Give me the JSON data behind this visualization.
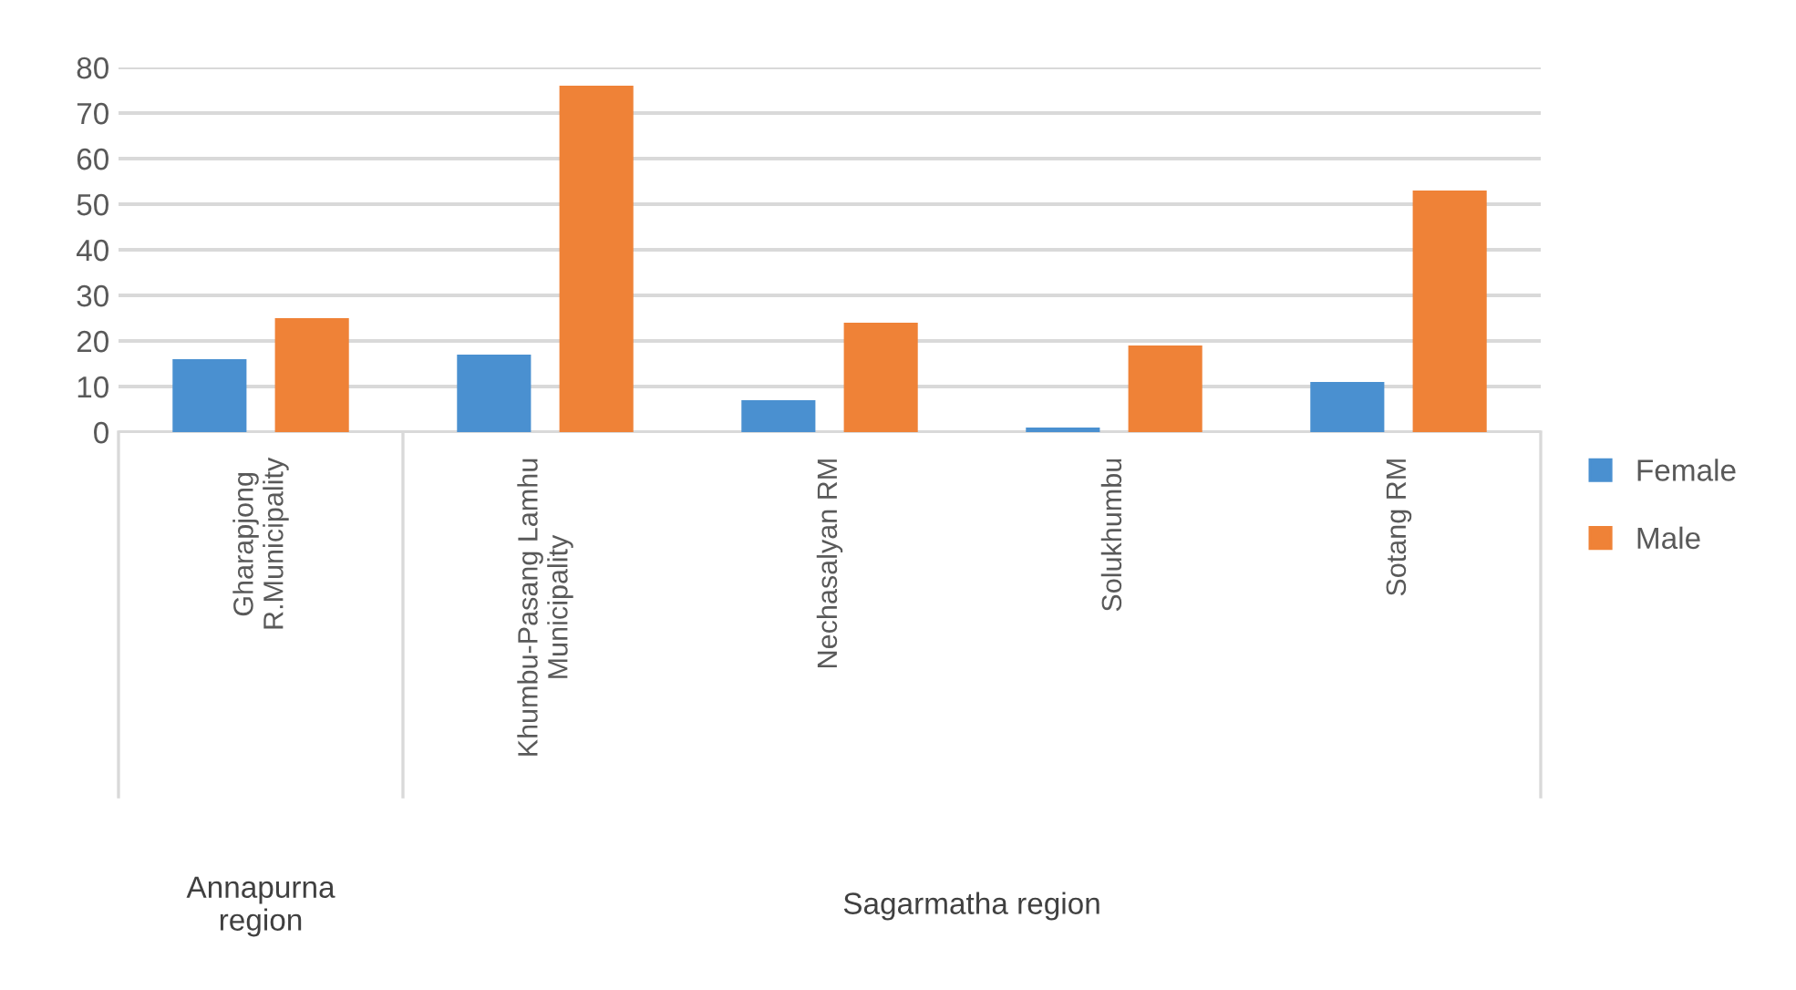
{
  "chart_data": {
    "type": "bar",
    "categories": [
      "Gharapjong\nR.Municipality",
      "Khumbu-Pasang Lamhu\nMunicipality",
      "Nechasalyan RM",
      "Solukhumbu",
      "Sotang RM"
    ],
    "series": [
      {
        "name": "Female",
        "color": "#4a90d0",
        "values": [
          16,
          17,
          7,
          1,
          11
        ]
      },
      {
        "name": "Male",
        "color": "#ef8237",
        "values": [
          25,
          76,
          24,
          19,
          53
        ]
      }
    ],
    "annotations": [
      "Annapurna\nregion",
      "Sagarmatha region"
    ],
    "ylim": [
      0,
      80
    ],
    "yticks": [
      0,
      10,
      20,
      30,
      40,
      50,
      60,
      70,
      80
    ],
    "grid": "y",
    "legend": "right"
  }
}
